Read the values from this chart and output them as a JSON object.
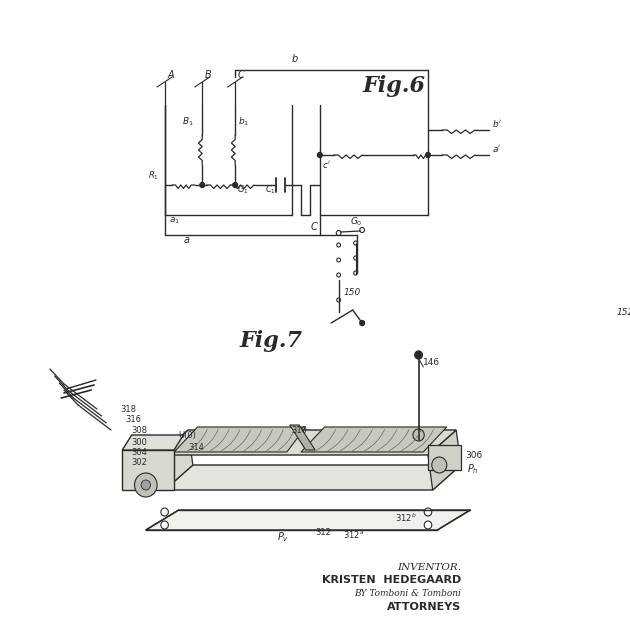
{
  "background_color": "#ffffff",
  "line_color": "#2a2a2a",
  "fig6_label": "Fig.6",
  "fig7_label": "Fig.7",
  "inventor_text": "INVENTOR.",
  "inventor_name": "KRISTEN  HEDEGAARD",
  "by_text": "BY Tomboni & Tomboni",
  "attorneys_text": "ATTORNEYS"
}
